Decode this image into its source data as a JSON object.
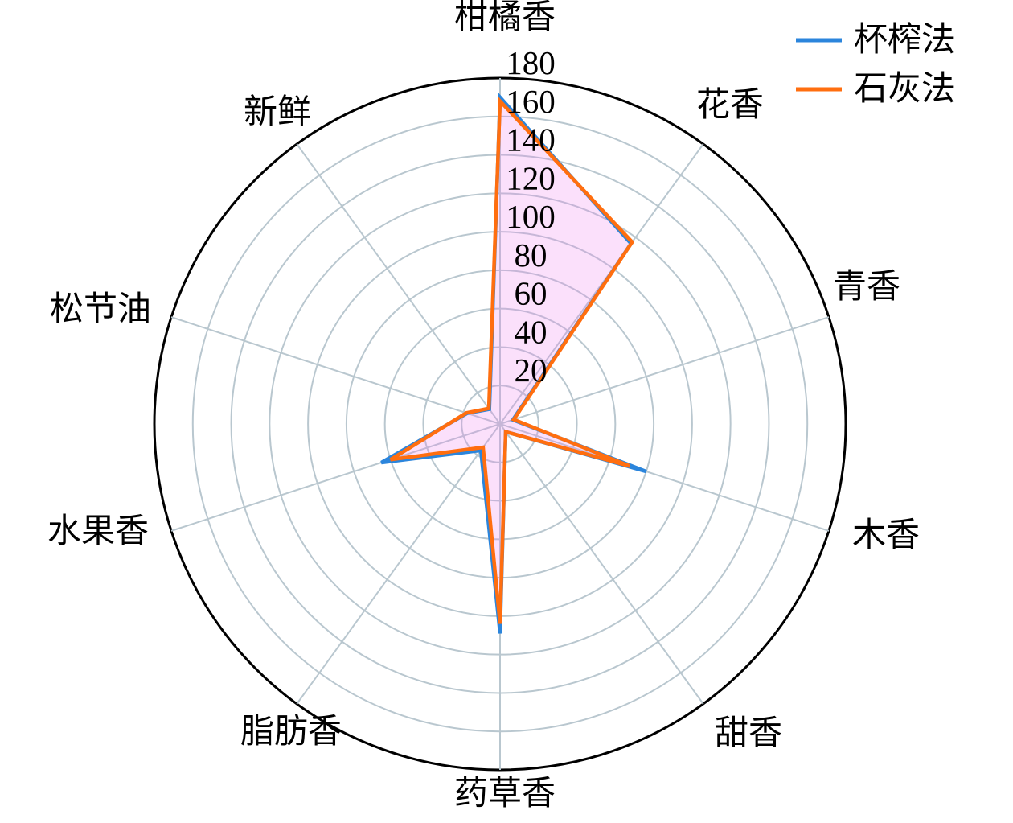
{
  "figure": {
    "kind": "radar-aroma-profile",
    "background": "#ffffff"
  },
  "chart_data": {
    "type": "radar",
    "categories": [
      "柑橘香",
      "花香",
      "青香",
      "木香",
      "甜香",
      "药草香",
      "脂肪香",
      "水果香",
      "松节油",
      "新鲜"
    ],
    "series": [
      {
        "name": "杯榨法",
        "color": "#2b85dc",
        "values": [
          170,
          116,
          7,
          80,
          5,
          109,
          17,
          65,
          18,
          9.5
        ]
      },
      {
        "name": "石灰法",
        "color": "#ff6e0f",
        "values": [
          168,
          117,
          7.5,
          71,
          5,
          104,
          15,
          60,
          18.5,
          10
        ]
      }
    ],
    "radial_ticks": [
      20,
      40,
      60,
      80,
      100,
      120,
      140,
      160,
      180
    ],
    "r_max": 180,
    "r_min": 0,
    "start_angle_deg": 0,
    "direction": "clockwise",
    "grid": true,
    "grid_color": "#b9c7cf",
    "outer_ring_color": "#000000",
    "fill_color": "#ee82ee",
    "fill_opacity": 0.25,
    "legend_position": "top-right",
    "title": "",
    "xlabel": "",
    "ylabel": ""
  }
}
